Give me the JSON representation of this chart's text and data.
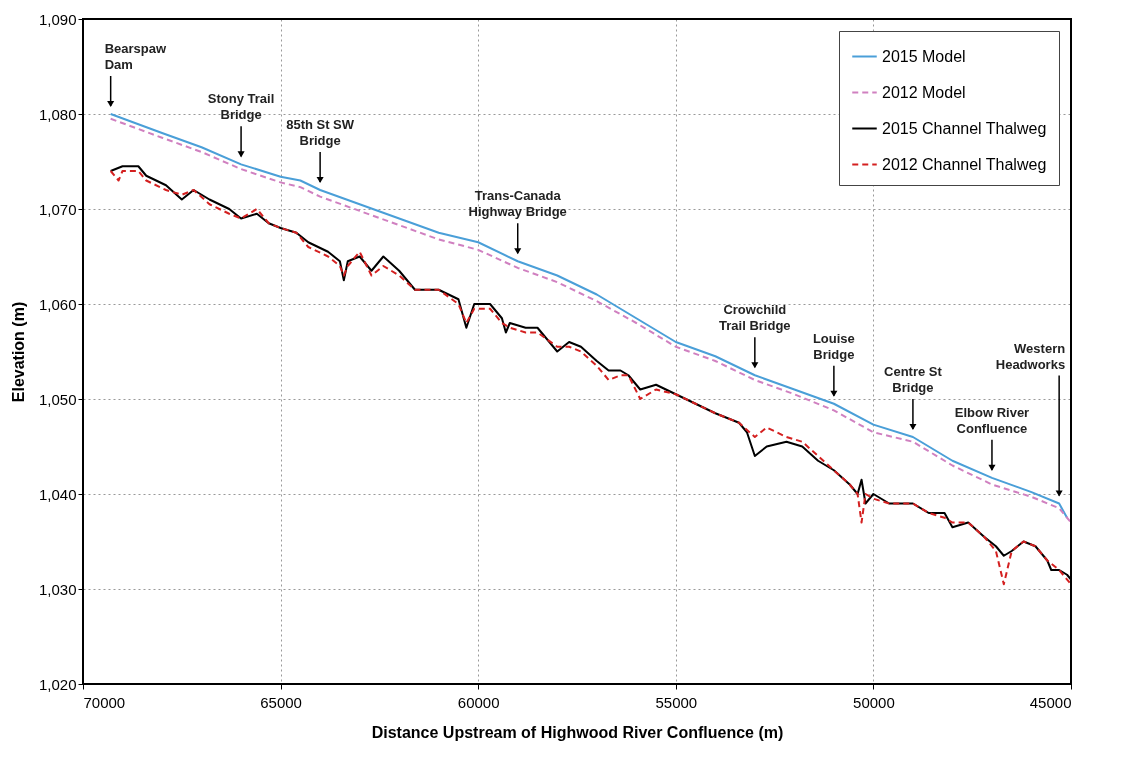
{
  "chart_data": {
    "type": "line",
    "xlabel": "Distance Upstream of Highwood River Confluence (m)",
    "ylabel": "Elevation (m)",
    "xlim": [
      70000,
      45000
    ],
    "xticks": [
      70000,
      65000,
      60000,
      55000,
      50000,
      45000
    ],
    "ylim": [
      1020,
      1090
    ],
    "yticks": [
      {
        "value": 1020,
        "label": "1,020"
      },
      {
        "value": 1030,
        "label": "1,030"
      },
      {
        "value": 1040,
        "label": "1,040"
      },
      {
        "value": 1050,
        "label": "1,050"
      },
      {
        "value": 1060,
        "label": "1,060"
      },
      {
        "value": 1070,
        "label": "1,070"
      },
      {
        "value": 1080,
        "label": "1,080"
      },
      {
        "value": 1090,
        "label": "1,090"
      }
    ],
    "grid": true,
    "legend": "top right",
    "marker": "none",
    "series": [
      {
        "name": "2015 Model",
        "color": "#4a9fd8",
        "line_style": "solid",
        "x": [
          69300,
          68000,
          67000,
          66000,
          65000,
          64500,
          64000,
          63000,
          62000,
          61000,
          60000,
          59000,
          58000,
          57000,
          56000,
          55000,
          54000,
          53000,
          52000,
          51000,
          50000,
          49000,
          48000,
          47000,
          46000,
          45300,
          45100
        ],
        "values": [
          1080,
          1078,
          1076.5,
          1074.7,
          1073.4,
          1073,
          1072,
          1070.5,
          1069,
          1067.5,
          1066.5,
          1064.5,
          1063,
          1061,
          1058.5,
          1056,
          1054.5,
          1052.5,
          1051,
          1049.5,
          1047.3,
          1046,
          1043.5,
          1041.7,
          1040.2,
          1039,
          1037.5
        ]
      },
      {
        "name": "2012 Model",
        "color": "#d080c0",
        "line_style": "dashed",
        "x": [
          69300,
          68000,
          67000,
          66000,
          65000,
          64500,
          64000,
          63000,
          62000,
          61000,
          60000,
          59000,
          58000,
          57000,
          56000,
          55000,
          54000,
          53000,
          52000,
          51000,
          50000,
          49000,
          48000,
          47000,
          46000,
          45300,
          45000
        ],
        "values": [
          1079.5,
          1077.5,
          1076,
          1074.2,
          1072.8,
          1072.3,
          1071.3,
          1069.8,
          1068.3,
          1066.8,
          1065.7,
          1063.8,
          1062.3,
          1060.3,
          1058,
          1055.5,
          1054,
          1052,
          1050.5,
          1048.8,
          1046.5,
          1045.5,
          1043,
          1041,
          1039.7,
          1038.5,
          1037
        ]
      },
      {
        "name": "2015 Channel Thalweg",
        "color": "#000000",
        "line_style": "solid",
        "x": [
          69300,
          69000,
          68600,
          68400,
          67900,
          67500,
          67200,
          66800,
          66300,
          66000,
          65600,
          65300,
          65000,
          64600,
          64300,
          63800,
          63500,
          63400,
          63300,
          63000,
          62700,
          62400,
          62000,
          61600,
          61000,
          60500,
          60300,
          60100,
          59700,
          59400,
          59300,
          59200,
          58800,
          58500,
          58000,
          57700,
          57400,
          57000,
          56700,
          56400,
          56200,
          55900,
          55500,
          55000,
          54500,
          54000,
          53400,
          53200,
          53000,
          52700,
          52200,
          51800,
          51400,
          51000,
          50600,
          50400,
          50300,
          50200,
          50000,
          49600,
          49000,
          48600,
          48200,
          48000,
          47600,
          47200,
          46900,
          46700,
          46500,
          46200,
          45900,
          45600,
          45500,
          45300,
          45100,
          45000
        ],
        "values": [
          1074,
          1074.5,
          1074.5,
          1073.5,
          1072.5,
          1071,
          1072,
          1071,
          1070,
          1069,
          1069.5,
          1068.5,
          1068,
          1067.5,
          1066.5,
          1065.5,
          1064.5,
          1062.5,
          1064.5,
          1065,
          1063.5,
          1065,
          1063.5,
          1061.5,
          1061.5,
          1060.5,
          1057.5,
          1060,
          1060,
          1058.5,
          1057,
          1058,
          1057.5,
          1057.5,
          1055,
          1056,
          1055.5,
          1054,
          1053,
          1053,
          1052.5,
          1051,
          1051.5,
          1050.5,
          1049.5,
          1048.5,
          1047.5,
          1046.5,
          1044,
          1045,
          1045.5,
          1045,
          1043.5,
          1042.5,
          1041,
          1040,
          1041.5,
          1039,
          1040,
          1039,
          1039,
          1038,
          1038,
          1036.5,
          1037,
          1035.5,
          1034.5,
          1033.5,
          1034,
          1035,
          1034.5,
          1033,
          1032,
          1032,
          1031.5,
          1031
        ]
      },
      {
        "name": "2012 Channel Thalweg",
        "color": "#d42020",
        "line_style": "dashed",
        "x": [
          69300,
          69100,
          69000,
          68600,
          68400,
          67900,
          67500,
          67200,
          66800,
          66300,
          66000,
          65600,
          65300,
          65000,
          64600,
          64300,
          63800,
          63500,
          63400,
          63300,
          63000,
          62700,
          62400,
          62000,
          61600,
          61000,
          60500,
          60300,
          60100,
          59700,
          59400,
          59200,
          58800,
          58500,
          58000,
          57700,
          57400,
          57000,
          56700,
          56400,
          56200,
          55900,
          55500,
          55000,
          54500,
          54000,
          53400,
          53000,
          52700,
          52200,
          51800,
          51400,
          51000,
          50600,
          50400,
          50300,
          50200,
          50000,
          49600,
          49000,
          48600,
          48200,
          48000,
          47600,
          47200,
          46900,
          46700,
          46500,
          46200,
          45900,
          45600,
          45300,
          45000
        ],
        "values": [
          1074,
          1073,
          1074,
          1074,
          1073,
          1072,
          1071.5,
          1072,
          1070.5,
          1069.5,
          1069,
          1070,
          1068.5,
          1068,
          1067.5,
          1066,
          1065,
          1064,
          1063,
          1064,
          1065.5,
          1063,
          1064,
          1063,
          1061.5,
          1061.5,
          1060,
          1058,
          1059.5,
          1059.5,
          1058,
          1057.5,
          1057,
          1057,
          1055.5,
          1055.5,
          1055,
          1053.5,
          1052,
          1052.5,
          1052.5,
          1050,
          1051,
          1050.5,
          1049.5,
          1048.5,
          1047.5,
          1046,
          1047,
          1046,
          1045.5,
          1044,
          1042.5,
          1041,
          1040,
          1037,
          1040,
          1039.5,
          1039,
          1039,
          1038,
          1037.5,
          1037,
          1037,
          1035.5,
          1034,
          1030.5,
          1034,
          1035,
          1034.5,
          1033,
          1032,
          1030.5
        ]
      }
    ],
    "annotations": [
      {
        "text": "Bearspaw\nDam",
        "x": 69300,
        "y": 1080
      },
      {
        "text": "Stony Trail\nBridge",
        "x": 66000,
        "y": 1074.7
      },
      {
        "text": "85th St SW\nBridge",
        "x": 64000,
        "y": 1072
      },
      {
        "text": "Trans-Canada\nHighway Bridge",
        "x": 59000,
        "y": 1064.5
      },
      {
        "text": "Crowchild\nTrail  Bridge",
        "x": 53000,
        "y": 1052.5
      },
      {
        "text": "Louise\nBridge",
        "x": 51000,
        "y": 1049.5
      },
      {
        "text": "Centre St\nBridge",
        "x": 49000,
        "y": 1046
      },
      {
        "text": "Elbow River\nConfluence",
        "x": 47000,
        "y": 1041.7
      },
      {
        "text": "Western\nHeadworks",
        "x": 45300,
        "y": 1039
      }
    ]
  }
}
